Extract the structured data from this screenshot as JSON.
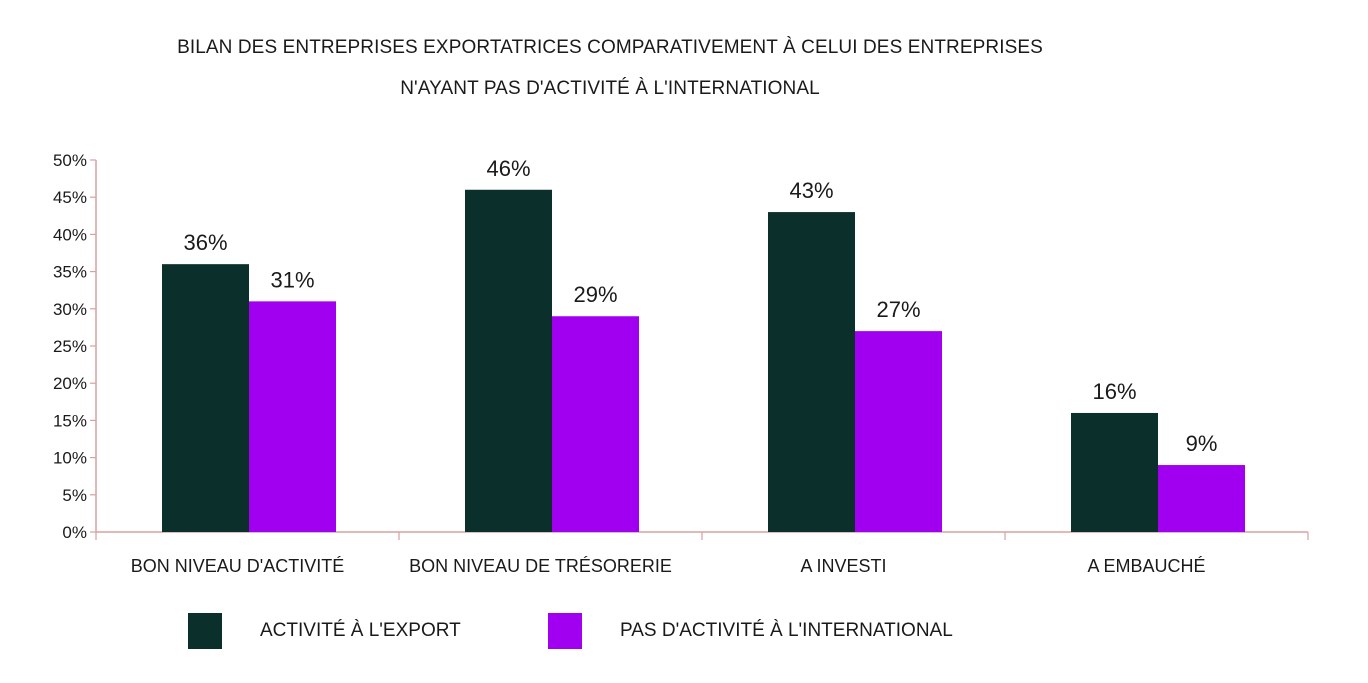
{
  "title_lines": [
    "BILAN DES ENTREPRISES EXPORTATRICES COMPARATIVEMENT À CELUI DES ENTREPRISES",
    "N'AYANT PAS D'ACTIVITÉ À L'INTERNATIONAL"
  ],
  "colors": {
    "series1": "#0b2f2b",
    "series2": "#a100f0",
    "axis": "#d9a0a0"
  },
  "chart_data": {
    "type": "bar",
    "title": "BILAN DES ENTREPRISES EXPORTATRICES COMPARATIVEMENT À CELUI DES ENTREPRISES N'AYANT PAS D'ACTIVITÉ À L'INTERNATIONAL",
    "categories": [
      "BON NIVEAU D'ACTIVITÉ",
      "BON NIVEAU DE TRÉSORERIE",
      "A INVESTI",
      "A EMBAUCHÉ"
    ],
    "series": [
      {
        "name": "ACTIVITÉ À L'EXPORT",
        "values": [
          36,
          46,
          43,
          16
        ],
        "labels": [
          "36%",
          "46%",
          "43%",
          "16%"
        ]
      },
      {
        "name": "PAS D'ACTIVITÉ À L'INTERNATIONAL",
        "values": [
          31,
          29,
          27,
          9
        ],
        "labels": [
          "31%",
          "29%",
          "27%",
          "9%"
        ]
      }
    ],
    "ylim": [
      0,
      50
    ],
    "yticks": [
      0,
      5,
      10,
      15,
      20,
      25,
      30,
      35,
      40,
      45,
      50
    ],
    "ytick_labels": [
      "0%",
      "5%",
      "10%",
      "15%",
      "20%",
      "25%",
      "30%",
      "35%",
      "40%",
      "45%",
      "50%"
    ],
    "xlabel": "",
    "ylabel": "",
    "grid": false,
    "legend_position": "bottom"
  }
}
